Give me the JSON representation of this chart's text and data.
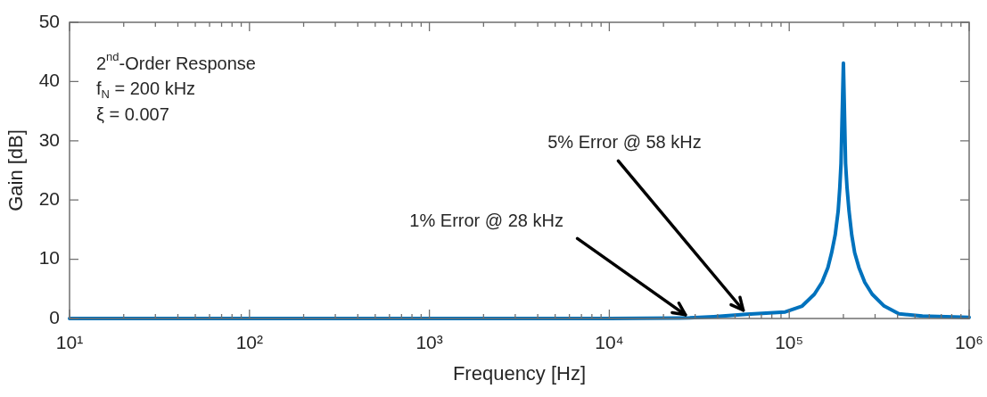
{
  "chart_data": {
    "type": "line",
    "xlabel": "Frequency [Hz]",
    "ylabel": "Gain [dB]",
    "annotations": [
      "2$^{nd}$-Order Response",
      "f$_{N}$ = 200 kHz",
      "ξ = 0.007",
      {
        "text": "1% Error @ 28 kHz",
        "x": 28000,
        "y": 0.1
      },
      {
        "text": "5% Error @ 58 kHz",
        "x": 58000,
        "y": 0.7
      }
    ],
    "x": [
      10,
      100,
      1000,
      10000,
      28000,
      38000,
      58000,
      95000,
      118000,
      138000,
      152000,
      164000,
      172000,
      180000,
      187000,
      191000,
      194000,
      200000,
      205600,
      209500,
      215000,
      222500,
      231000,
      244000,
      263000,
      289000,
      337000,
      407000,
      550000,
      1000000
    ],
    "values": [
      0,
      0,
      0,
      0,
      0.1,
      0.3,
      0.7,
      1.1,
      2.1,
      4.1,
      6.1,
      8.6,
      11.1,
      14.1,
      18.1,
      22.1,
      26.2,
      43.1,
      26.2,
      22.1,
      18.1,
      14.1,
      11.1,
      8.6,
      6.1,
      4.1,
      2.1,
      0.8,
      0.4,
      0.2
    ],
    "color": "#0072bd",
    "marker": "none",
    "line_style": "solid",
    "grid": false,
    "log": "x",
    "xlim": [
      10,
      1000000
    ],
    "ylim": [
      0,
      50
    ],
    "yticks": [
      0,
      10,
      20,
      30,
      40,
      50
    ],
    "xticks": [
      {
        "value": 10,
        "label": "10¹"
      },
      {
        "value": 20,
        "label": null
      },
      {
        "value": 30,
        "label": null
      },
      {
        "value": 40,
        "label": null
      },
      {
        "value": 50,
        "label": null
      },
      {
        "value": 60,
        "label": null
      },
      {
        "value": 70,
        "label": null
      },
      {
        "value": 80,
        "label": null
      },
      {
        "value": 90,
        "label": null
      },
      {
        "value": 100,
        "label": "10²"
      },
      {
        "value": 200,
        "label": null
      },
      {
        "value": 300,
        "label": null
      },
      {
        "value": 400,
        "label": null
      },
      {
        "value": 500,
        "label": null
      },
      {
        "value": 600,
        "label": null
      },
      {
        "value": 700,
        "label": null
      },
      {
        "value": 800,
        "label": null
      },
      {
        "value": 900,
        "label": null
      },
      {
        "value": 1000,
        "label": "10³"
      },
      {
        "value": 2000,
        "label": null
      },
      {
        "value": 3000,
        "label": null
      },
      {
        "value": 4000,
        "label": null
      },
      {
        "value": 5000,
        "label": null
      },
      {
        "value": 6000,
        "label": null
      },
      {
        "value": 7000,
        "label": null
      },
      {
        "value": 8000,
        "label": null
      },
      {
        "value": 9000,
        "label": null
      },
      {
        "value": 10000,
        "label": "10⁴"
      },
      {
        "value": 20000,
        "label": null
      },
      {
        "value": 30000,
        "label": null
      },
      {
        "value": 40000,
        "label": null
      },
      {
        "value": 50000,
        "label": null
      },
      {
        "value": 60000,
        "label": null
      },
      {
        "value": 70000,
        "label": null
      },
      {
        "value": 80000,
        "label": null
      },
      {
        "value": 90000,
        "label": null
      },
      {
        "value": 100000,
        "label": "10⁵"
      },
      {
        "value": 200000,
        "label": null
      },
      {
        "value": 300000,
        "label": null
      },
      {
        "value": 400000,
        "label": null
      },
      {
        "value": 500000,
        "label": null
      },
      {
        "value": 600000,
        "label": null
      },
      {
        "value": 700000,
        "label": null
      },
      {
        "value": 800000,
        "label": null
      },
      {
        "value": 900000,
        "label": null
      },
      {
        "value": 1000000,
        "label": "10⁶"
      }
    ]
  }
}
